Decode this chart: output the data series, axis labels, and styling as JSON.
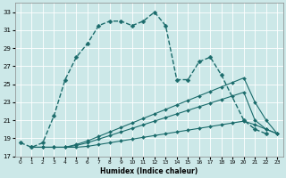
{
  "xlabel": "Humidex (Indice chaleur)",
  "bg_color": "#cce8e8",
  "grid_color": "#ffffff",
  "line_color": "#1a6b6b",
  "xlim": [
    -0.5,
    23.5
  ],
  "ylim": [
    17,
    34
  ],
  "yticks": [
    17,
    19,
    21,
    23,
    25,
    27,
    29,
    31,
    33
  ],
  "xticks": [
    0,
    1,
    2,
    3,
    4,
    5,
    6,
    7,
    8,
    9,
    10,
    11,
    12,
    13,
    14,
    15,
    16,
    17,
    18,
    19,
    20,
    21,
    22,
    23
  ],
  "series": [
    {
      "x": [
        0,
        1,
        2,
        3,
        4,
        5,
        6,
        7,
        8,
        9,
        10,
        11,
        12,
        13,
        14,
        15,
        16,
        17,
        18,
        20,
        21,
        22
      ],
      "y": [
        18.5,
        18.0,
        18.5,
        21.5,
        25.5,
        28.0,
        29.5,
        31.5,
        32.0,
        32.0,
        31.5,
        32.0,
        33.0,
        31.5,
        25.5,
        25.5,
        27.5,
        28.0,
        26.0,
        21.0,
        20.0,
        19.5
      ],
      "linestyle": "--",
      "linewidth": 1.0,
      "markersize": 2.5
    },
    {
      "x": [
        1,
        2,
        3,
        4,
        5,
        6,
        7,
        8,
        9,
        10,
        11,
        12,
        13,
        14,
        15,
        16,
        17,
        18,
        19,
        20,
        21,
        22,
        23
      ],
      "y": [
        18.0,
        18.0,
        18.0,
        18.0,
        18.3,
        18.7,
        19.2,
        19.7,
        20.2,
        20.7,
        21.2,
        21.7,
        22.2,
        22.7,
        23.2,
        23.7,
        24.2,
        24.7,
        25.2,
        25.7,
        23.0,
        21.0,
        19.5
      ],
      "linestyle": "-",
      "linewidth": 0.8,
      "markersize": 2.0
    },
    {
      "x": [
        1,
        2,
        3,
        4,
        5,
        6,
        7,
        8,
        9,
        10,
        11,
        12,
        13,
        14,
        15,
        16,
        17,
        18,
        19,
        20,
        21,
        22,
        23
      ],
      "y": [
        18.0,
        18.0,
        18.0,
        18.0,
        18.2,
        18.5,
        18.9,
        19.3,
        19.7,
        20.1,
        20.5,
        20.9,
        21.3,
        21.7,
        22.1,
        22.5,
        22.9,
        23.3,
        23.7,
        24.1,
        21.0,
        20.0,
        19.5
      ],
      "linestyle": "-",
      "linewidth": 0.8,
      "markersize": 2.0
    },
    {
      "x": [
        1,
        2,
        3,
        4,
        5,
        6,
        7,
        8,
        9,
        10,
        11,
        12,
        13,
        14,
        15,
        16,
        17,
        18,
        19,
        20,
        21,
        22,
        23
      ],
      "y": [
        18.0,
        18.0,
        18.0,
        18.0,
        18.0,
        18.1,
        18.3,
        18.5,
        18.7,
        18.9,
        19.1,
        19.3,
        19.5,
        19.7,
        19.9,
        20.1,
        20.3,
        20.5,
        20.7,
        20.9,
        20.5,
        20.0,
        19.5
      ],
      "linestyle": "-",
      "linewidth": 0.8,
      "markersize": 2.0
    }
  ]
}
